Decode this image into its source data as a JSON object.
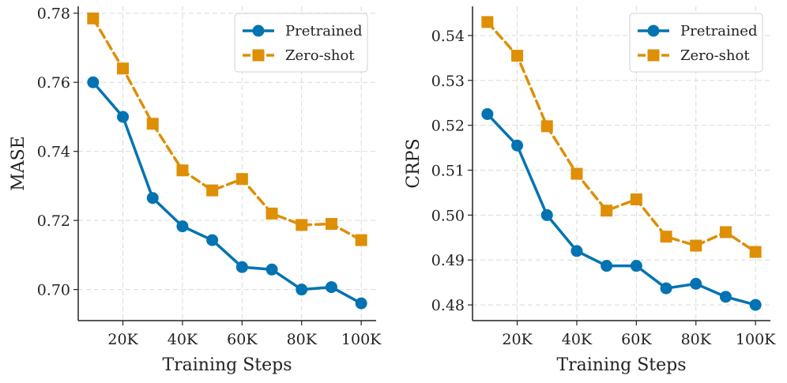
{
  "chart_data": [
    {
      "type": "line",
      "name": "mase",
      "xlabel": "Training Steps",
      "ylabel": "MASE",
      "xlim": [
        5000,
        105000
      ],
      "ylim": [
        0.691,
        0.782
      ],
      "x": [
        10000,
        20000,
        30000,
        40000,
        50000,
        60000,
        70000,
        80000,
        90000,
        100000
      ],
      "x_ticks": [
        20000,
        40000,
        60000,
        80000,
        100000
      ],
      "x_tick_labels": [
        "20K",
        "40K",
        "60K",
        "80K",
        "100K"
      ],
      "y_ticks": [
        0.7,
        0.72,
        0.74,
        0.76,
        0.78
      ],
      "y_tick_labels": [
        "0.70",
        "0.72",
        "0.74",
        "0.76",
        "0.78"
      ],
      "grid": true,
      "legend_position": "top-right",
      "series": [
        {
          "name": "Pretrained",
          "style": "solid-circle",
          "color": "#0173b2",
          "values": [
            0.76,
            0.75,
            0.7265,
            0.7183,
            0.7143,
            0.7065,
            0.7058,
            0.7,
            0.7007,
            0.696
          ]
        },
        {
          "name": "Zero-shot",
          "style": "dashed-square",
          "color": "#de8f05",
          "values": [
            0.7785,
            0.764,
            0.748,
            0.7345,
            0.7287,
            0.732,
            0.722,
            0.7187,
            0.719,
            0.7143
          ]
        }
      ]
    },
    {
      "type": "line",
      "name": "crps",
      "xlabel": "Training Steps",
      "ylabel": "CRPS",
      "xlim": [
        5000,
        105000
      ],
      "ylim": [
        0.4765,
        0.5465
      ],
      "x": [
        10000,
        20000,
        30000,
        40000,
        50000,
        60000,
        70000,
        80000,
        90000,
        100000
      ],
      "x_ticks": [
        20000,
        40000,
        60000,
        80000,
        100000
      ],
      "x_tick_labels": [
        "20K",
        "40K",
        "60K",
        "80K",
        "100K"
      ],
      "y_ticks": [
        0.48,
        0.49,
        0.5,
        0.51,
        0.52,
        0.53,
        0.54
      ],
      "y_tick_labels": [
        "0.48",
        "0.49",
        "0.50",
        "0.51",
        "0.52",
        "0.53",
        "0.54"
      ],
      "grid": true,
      "legend_position": "top-right",
      "series": [
        {
          "name": "Pretrained",
          "style": "solid-circle",
          "color": "#0173b2",
          "values": [
            0.5225,
            0.5155,
            0.5,
            0.492,
            0.4887,
            0.4887,
            0.4837,
            0.4847,
            0.4818,
            0.48
          ]
        },
        {
          "name": "Zero-shot",
          "style": "dashed-square",
          "color": "#de8f05",
          "values": [
            0.543,
            0.5355,
            0.5198,
            0.5092,
            0.501,
            0.5035,
            0.4952,
            0.4932,
            0.4962,
            0.4918
          ]
        }
      ]
    }
  ]
}
